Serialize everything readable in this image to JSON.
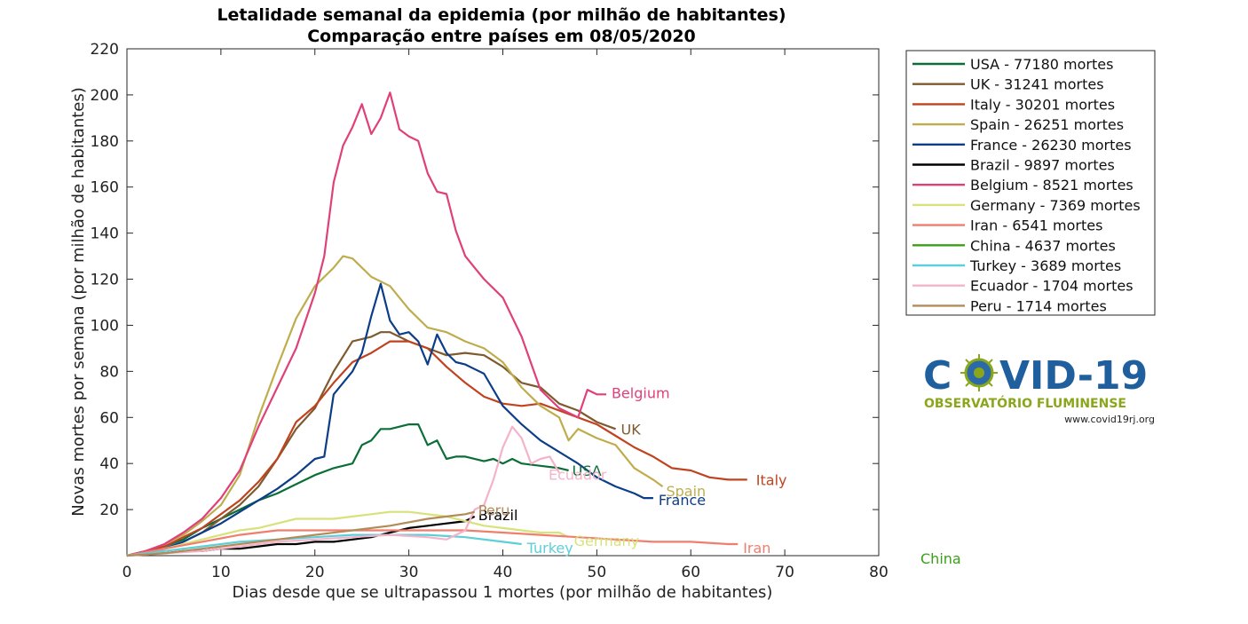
{
  "chart_data": {
    "type": "line",
    "title": "Letalidade semanal da epidemia (por milhão de habitantes)",
    "subtitle": "Comparação entre países em 08/05/2020",
    "xlabel": "Dias desde que se ultrapassou 1 mortes (por milhão de habitantes)",
    "ylabel": "Novas mortes por semana (por milhão de habitantes)",
    "xlim": [
      0,
      80
    ],
    "ylim": [
      0,
      220
    ],
    "xticks": [
      0,
      10,
      20,
      30,
      40,
      50,
      60,
      70,
      80
    ],
    "yticks": [
      20,
      40,
      60,
      80,
      100,
      120,
      140,
      160,
      180,
      200,
      220
    ],
    "grid": false,
    "legend_position": "outside-right-top",
    "series": [
      {
        "name": "USA - 77180 mortes",
        "label": "USA",
        "color": "#0b6e37",
        "x": [
          0,
          2,
          4,
          6,
          8,
          10,
          12,
          14,
          16,
          18,
          20,
          22,
          23,
          24,
          25,
          26,
          27,
          28,
          29,
          30,
          31,
          32,
          33,
          34,
          35,
          36,
          38,
          39,
          40,
          41,
          42,
          44,
          46,
          47
        ],
        "y": [
          0,
          2,
          4,
          7,
          12,
          16,
          20,
          24,
          27,
          31,
          35,
          38,
          39,
          40,
          48,
          50,
          55,
          55,
          56,
          57,
          57,
          48,
          50,
          42,
          43,
          43,
          41,
          42,
          40,
          42,
          40,
          39,
          38,
          37
        ]
      },
      {
        "name": "UK - 31241 mortes",
        "label": "UK",
        "color": "#7e5a2e",
        "x": [
          0,
          2,
          4,
          6,
          8,
          10,
          12,
          14,
          16,
          18,
          20,
          22,
          24,
          26,
          27,
          28,
          30,
          32,
          34,
          36,
          38,
          40,
          42,
          44,
          46,
          48,
          50,
          52
        ],
        "y": [
          0,
          1,
          3,
          6,
          10,
          16,
          22,
          30,
          42,
          55,
          64,
          80,
          93,
          95,
          97,
          97,
          93,
          90,
          87,
          88,
          87,
          82,
          75,
          73,
          66,
          63,
          58,
          55
        ]
      },
      {
        "name": "Italy - 30201 mortes",
        "label": "Italy",
        "color": "#c0431f",
        "x": [
          0,
          2,
          4,
          6,
          8,
          10,
          12,
          14,
          16,
          18,
          20,
          22,
          24,
          26,
          28,
          30,
          32,
          34,
          36,
          38,
          40,
          42,
          44,
          46,
          48,
          50,
          52,
          54,
          56,
          58,
          60,
          62,
          64,
          66
        ],
        "y": [
          0,
          2,
          4,
          8,
          12,
          18,
          24,
          32,
          42,
          58,
          65,
          75,
          84,
          88,
          93,
          93,
          90,
          82,
          75,
          69,
          66,
          65,
          66,
          63,
          60,
          57,
          52,
          47,
          43,
          38,
          37,
          34,
          33,
          33
        ]
      },
      {
        "name": "Spain - 26251 mortes",
        "label": "Spain",
        "color": "#bfad4d",
        "x": [
          0,
          2,
          4,
          6,
          8,
          10,
          12,
          14,
          16,
          18,
          20,
          22,
          23,
          24,
          26,
          28,
          30,
          32,
          34,
          36,
          38,
          40,
          42,
          44,
          46,
          47,
          48,
          50,
          52,
          54,
          56,
          57
        ],
        "y": [
          0,
          2,
          5,
          9,
          15,
          22,
          35,
          60,
          82,
          103,
          117,
          125,
          130,
          129,
          121,
          117,
          107,
          99,
          97,
          93,
          90,
          84,
          73,
          65,
          60,
          50,
          55,
          51,
          48,
          38,
          33,
          30
        ]
      },
      {
        "name": "France - 26230 mortes",
        "label": "France",
        "color": "#0c3d88",
        "x": [
          0,
          2,
          4,
          6,
          8,
          10,
          12,
          14,
          16,
          18,
          20,
          21,
          22,
          24,
          25,
          26,
          27,
          28,
          29,
          30,
          31,
          32,
          33,
          34,
          35,
          36,
          37,
          38,
          40,
          42,
          44,
          46,
          48,
          50,
          52,
          54,
          55,
          56
        ],
        "y": [
          0,
          1,
          3,
          6,
          10,
          14,
          19,
          24,
          29,
          35,
          42,
          43,
          70,
          80,
          88,
          104,
          118,
          102,
          96,
          97,
          93,
          83,
          96,
          88,
          84,
          83,
          81,
          79,
          65,
          57,
          50,
          45,
          40,
          34,
          30,
          27,
          25,
          25
        ]
      },
      {
        "name": "Brazil - 9897 mortes",
        "label": "Brazil",
        "color": "#000000",
        "x": [
          0,
          2,
          4,
          6,
          8,
          10,
          12,
          14,
          16,
          18,
          20,
          22,
          24,
          26,
          28,
          30,
          32,
          34,
          36,
          37
        ],
        "y": [
          0,
          1,
          1,
          2,
          2,
          3,
          3,
          4,
          5,
          5,
          6,
          6,
          7,
          8,
          10,
          12,
          13,
          14,
          15,
          17
        ]
      },
      {
        "name": "Belgium - 8521 mortes",
        "label": "Belgium",
        "color": "#e0407a",
        "x": [
          0,
          2,
          4,
          6,
          8,
          10,
          12,
          14,
          16,
          18,
          20,
          21,
          22,
          23,
          24,
          25,
          26,
          27,
          28,
          29,
          30,
          31,
          32,
          33,
          34,
          35,
          36,
          37,
          38,
          40,
          42,
          44,
          46,
          48,
          49,
          50,
          51
        ],
        "y": [
          0,
          2,
          5,
          10,
          16,
          25,
          37,
          56,
          73,
          90,
          114,
          130,
          162,
          178,
          186,
          196,
          183,
          190,
          201,
          185,
          182,
          180,
          166,
          158,
          157,
          141,
          130,
          125,
          120,
          112,
          95,
          72,
          64,
          60,
          72,
          70,
          70
        ]
      },
      {
        "name": "Germany - 7369 mortes",
        "label": "Germany",
        "color": "#d7e27a",
        "x": [
          0,
          2,
          4,
          6,
          8,
          10,
          12,
          14,
          16,
          18,
          20,
          22,
          24,
          26,
          28,
          30,
          32,
          34,
          36,
          38,
          40,
          42,
          44,
          46,
          47
        ],
        "y": [
          0,
          1,
          3,
          5,
          7,
          9,
          11,
          12,
          14,
          16,
          16,
          16,
          17,
          18,
          19,
          19,
          18,
          17,
          15,
          13,
          12,
          11,
          10,
          10,
          8
        ]
      },
      {
        "name": "Iran - 6541 mortes",
        "label": "Iran",
        "color": "#f07e6e",
        "x": [
          0,
          4,
          8,
          12,
          16,
          20,
          24,
          28,
          32,
          36,
          40,
          44,
          48,
          52,
          56,
          60,
          64,
          65
        ],
        "y": [
          0,
          3,
          6,
          9,
          11,
          11,
          11,
          11,
          11,
          11,
          10,
          9,
          8,
          7,
          6,
          6,
          5,
          5
        ]
      },
      {
        "name": "China - 4637 mortes",
        "label": "China",
        "color": "#3aa117",
        "x": [],
        "y": []
      },
      {
        "name": "Turkey - 3689 mortes",
        "label": "Turkey",
        "color": "#5dcfd8",
        "x": [
          0,
          4,
          8,
          12,
          16,
          20,
          24,
          28,
          32,
          36,
          40,
          42
        ],
        "y": [
          0,
          2,
          4,
          6,
          7,
          8,
          9,
          9,
          9,
          8,
          6,
          5
        ]
      },
      {
        "name": "Ecuador - 1704 mortes",
        "label": "Ecuador",
        "color": "#f4b3c9",
        "x": [
          0,
          4,
          8,
          12,
          16,
          20,
          24,
          28,
          32,
          34,
          36,
          37,
          38,
          39,
          40,
          41,
          42,
          43,
          44,
          45,
          46
        ],
        "y": [
          0,
          1,
          2,
          4,
          6,
          7,
          8,
          9,
          8,
          7,
          11,
          20,
          22,
          33,
          47,
          56,
          51,
          40,
          42,
          43,
          36
        ]
      },
      {
        "name": "Peru - 1714 mortes",
        "label": "Peru",
        "color": "#b38b59",
        "x": [
          0,
          4,
          8,
          12,
          16,
          20,
          24,
          28,
          32,
          34,
          36,
          37
        ],
        "y": [
          0,
          1,
          3,
          5,
          7,
          9,
          11,
          13,
          16,
          17,
          18,
          19
        ]
      }
    ]
  },
  "logo": {
    "part1": "C",
    "part2": "VID-19",
    "subtitle": "OBSERVATÓRIO FLUMINENSE",
    "url": "www.covid19rj.org",
    "primary_color": "#1f5f9e",
    "secondary_color": "#8aa61b"
  }
}
